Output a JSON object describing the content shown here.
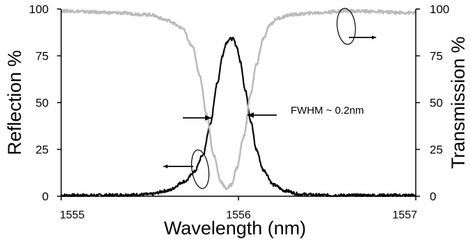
{
  "chart_data": {
    "type": "line",
    "xlabel": "Wavelength (nm)",
    "ylabel_left": "Reflection %",
    "ylabel_right": "Transmission %",
    "xlim": [
      1555,
      1557
    ],
    "ylim_left": [
      0,
      100
    ],
    "ylim_right": [
      0,
      100
    ],
    "x_ticks": [
      "1555",
      "1556",
      "1557"
    ],
    "y_ticks_left": [
      "0",
      "25",
      "50",
      "75",
      "100"
    ],
    "y_ticks_right": [
      "0",
      "25",
      "50",
      "75",
      "100"
    ],
    "grid": false,
    "series": [
      {
        "axis": "left",
        "color": "#000000",
        "x": [
          1555.0,
          1555.2,
          1555.4,
          1555.5,
          1555.6,
          1555.7,
          1555.75,
          1555.8,
          1555.84,
          1555.88,
          1555.91,
          1555.93,
          1555.95,
          1555.97,
          1555.99,
          1556.01,
          1556.04,
          1556.07,
          1556.1,
          1556.14,
          1556.2,
          1556.26,
          1556.35,
          1556.5,
          1556.7,
          1557.0
        ],
        "values": [
          0.5,
          0.5,
          0.8,
          1.0,
          3.0,
          8.0,
          13.0,
          22.0,
          38.0,
          60.0,
          75.0,
          82.0,
          84.0,
          84.0,
          80.0,
          72.0,
          56.0,
          40.0,
          25.0,
          14.0,
          6.0,
          3.0,
          1.0,
          0.5,
          0.5,
          0.5
        ]
      },
      {
        "axis": "right",
        "color": "#bbbbbb",
        "x": [
          1555.0,
          1555.3,
          1555.5,
          1555.6,
          1555.68,
          1555.74,
          1555.78,
          1555.82,
          1555.86,
          1555.9,
          1555.93,
          1555.96,
          1555.99,
          1556.03,
          1556.07,
          1556.1,
          1556.14,
          1556.18,
          1556.22,
          1556.3,
          1556.45,
          1556.6,
          1557.0
        ],
        "values": [
          99.0,
          98.0,
          97.0,
          94.0,
          90.0,
          80.0,
          65.0,
          44.0,
          22.0,
          8.0,
          4.0,
          6.0,
          15.0,
          32.0,
          55.0,
          70.0,
          84.0,
          92.0,
          95.0,
          97.0,
          98.0,
          99.0,
          98.0
        ]
      }
    ],
    "annotations": [
      {
        "text": "FWHM ~ 0.2nm"
      }
    ]
  }
}
